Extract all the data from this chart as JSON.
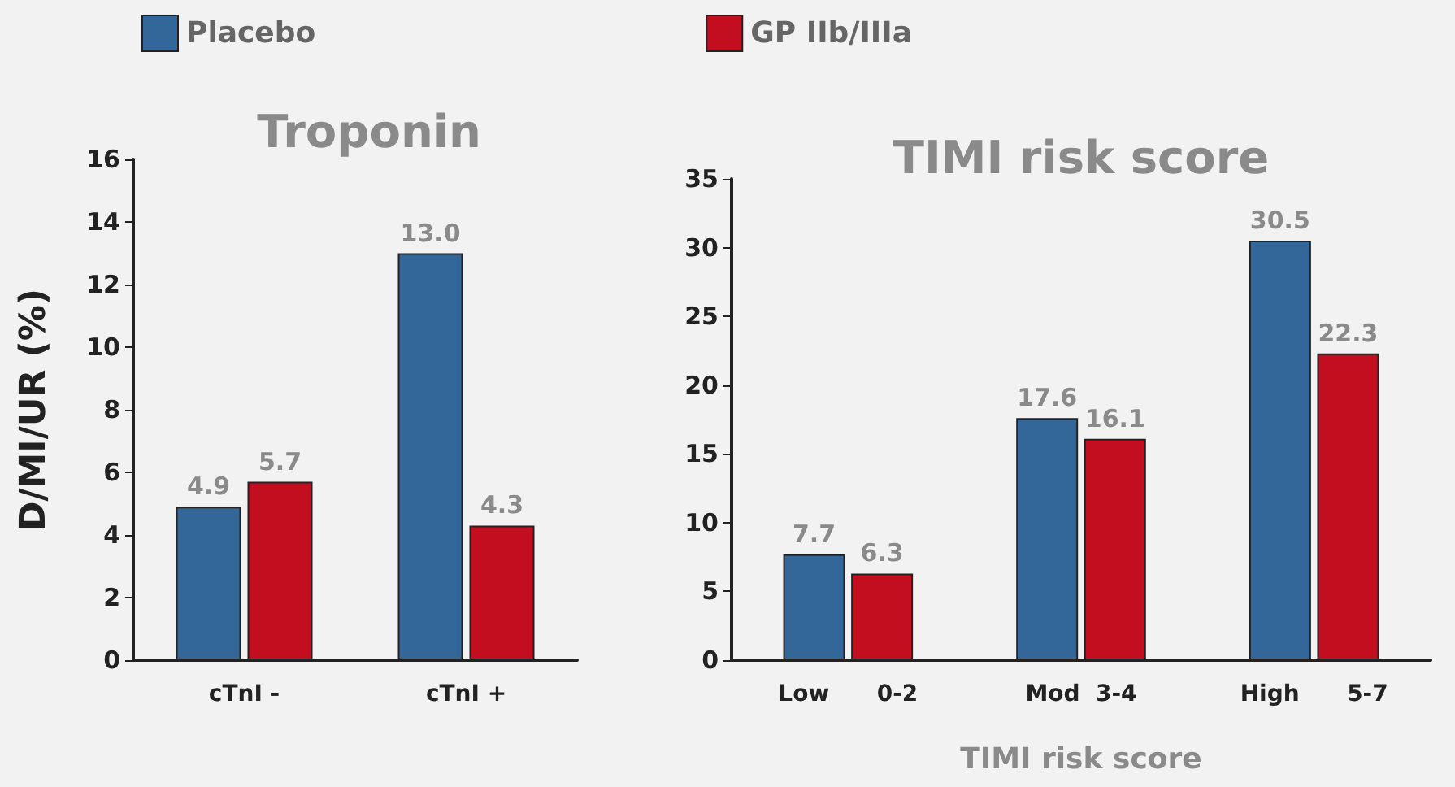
{
  "chart_data": [
    {
      "type": "bar",
      "title": "Troponin",
      "ylabel": "D/MI/UR (%)",
      "categories": [
        "cTnI -",
        "cTnI +"
      ],
      "series": [
        {
          "name": "Placebo",
          "color": "#336699",
          "values": [
            4.9,
            13.0
          ],
          "value_labels": [
            "4.9",
            "13.0"
          ]
        },
        {
          "name": "GP IIb/IIIa",
          "color": "#c20e1e",
          "values": [
            5.7,
            4.3
          ],
          "value_labels": [
            "5.7",
            "4.3"
          ]
        }
      ],
      "ylim": [
        0,
        16
      ],
      "yticks": [
        0,
        2,
        4,
        6,
        8,
        10,
        12,
        14,
        16
      ],
      "grid": false,
      "legend": "top"
    },
    {
      "type": "bar",
      "title": "TIMI risk score",
      "xlabel": "TIMI risk score",
      "categories": [
        "Low      0-2",
        "Mod  3-4",
        "High      5-7"
      ],
      "series": [
        {
          "color": "#336699",
          "values": [
            7.7,
            17.6,
            30.5
          ]
        },
        {
          "color": "#c20e1e",
          "values": [
            6.3,
            16.1,
            22.3
          ]
        }
      ],
      "ylim": [
        0,
        35
      ],
      "yticks": [
        0,
        5,
        10,
        15,
        20,
        25,
        30,
        35
      ],
      "grid": false,
      "data_labels": true
    }
  ]
}
